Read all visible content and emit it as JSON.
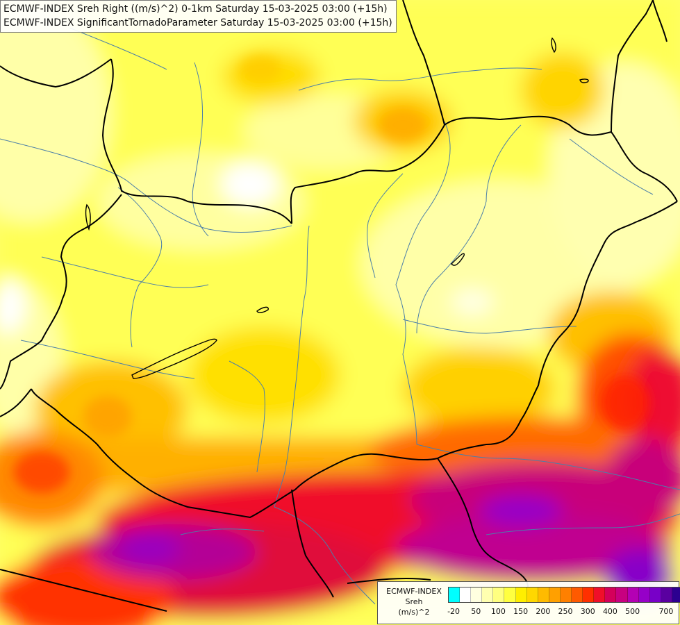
{
  "titles": {
    "line1": "ECMWF-INDEX Sreh Right ((m/s)^2) 0-1km Saturday 15-03-2025 03:00 (+15h)",
    "line2": "ECMWF-INDEX SignificantTornadoParameter Saturday 15-03-2025 03:00 (+15h)"
  },
  "legend": {
    "model": "ECMWF-INDEX",
    "parameter": "Sreh",
    "unit": "(m/s)^2",
    "colors": [
      "#00ffff",
      "#ffffff",
      "#ffffe0",
      "#ffffb0",
      "#ffff80",
      "#ffff40",
      "#ffee00",
      "#ffd700",
      "#ffbb00",
      "#ffa000",
      "#ff8000",
      "#ff5a00",
      "#ff3000",
      "#f00f2a",
      "#d4005a",
      "#c80080",
      "#b400b4",
      "#9600c8",
      "#7800c8",
      "#5a00a0",
      "#2c0090"
    ],
    "tick_labels": [
      "-20",
      "50",
      "100",
      "150",
      "200",
      "250",
      "300",
      "400",
      "500",
      "700"
    ],
    "tick_index": [
      0,
      2,
      4,
      6,
      8,
      10,
      12,
      14,
      16,
      19
    ]
  },
  "colors": {
    "border": "#000000",
    "river": "#4b7fa8",
    "lake": "#000000"
  }
}
